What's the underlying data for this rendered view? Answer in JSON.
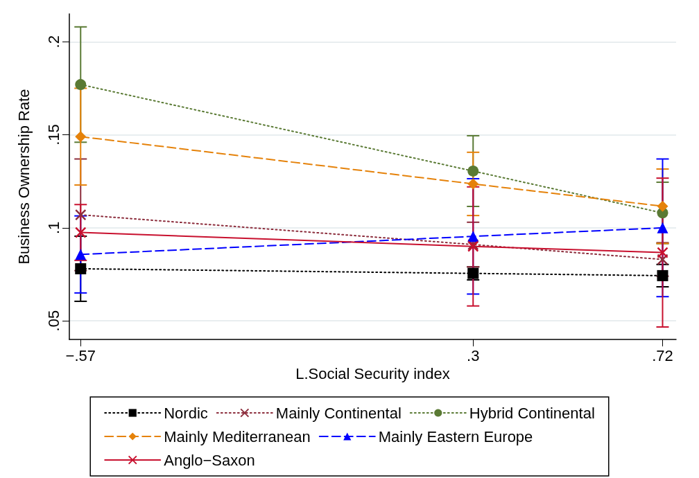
{
  "chart_data": {
    "type": "line",
    "xlabel": "L.Social Security index",
    "ylabel": "Business Ownership Rate",
    "x": [
      -0.57,
      0.3,
      0.72
    ],
    "xlim": [
      -0.595,
      0.75
    ],
    "xticks": [
      {
        "value": -0.57,
        "label": "−.57"
      },
      {
        "value": 0.3,
        "label": ".3"
      },
      {
        "value": 0.72,
        "label": ".72"
      }
    ],
    "ylim": [
      0.04,
      0.215
    ],
    "yticks": [
      {
        "value": 0.05,
        "label": ".05"
      },
      {
        "value": 0.1,
        "label": ".1"
      },
      {
        "value": 0.15,
        "label": ".15"
      },
      {
        "value": 0.2,
        "label": ".2"
      }
    ],
    "grid": "y",
    "legend": "bottom",
    "series": [
      {
        "name": "Nordic",
        "color": "#000000",
        "marker": "square",
        "line_style": "dotted",
        "values": [
          0.078,
          0.0755,
          0.0743
        ],
        "errors": [
          0.0175,
          0.0035,
          0.006
        ]
      },
      {
        "name": "Mainly Continental",
        "color": "#8c2d3c",
        "marker": "cross",
        "line_style": "dotted",
        "values": [
          0.107,
          0.091,
          0.083
        ],
        "errors": [
          0.03,
          0.012,
          0.009
        ]
      },
      {
        "name": "Hybrid Continental",
        "color": "#5a7a34",
        "marker": "circle",
        "line_style": "dotted",
        "values": [
          0.177,
          0.1305,
          0.108
        ],
        "errors": [
          0.031,
          0.019,
          0.0165
        ]
      },
      {
        "name": "Mainly Mediterranean",
        "color": "#e5820a",
        "marker": "diamond",
        "line_style": "dashed",
        "values": [
          0.149,
          0.1236,
          0.1116
        ],
        "errors": [
          0.026,
          0.017,
          0.02
        ]
      },
      {
        "name": "Mainly Eastern Europe",
        "color": "#0000ff",
        "marker": "triangle",
        "line_style": "dashed",
        "values": [
          0.0857,
          0.0954,
          0.1
        ],
        "errors": [
          0.0207,
          0.031,
          0.037
        ]
      },
      {
        "name": "Anglo−Saxon",
        "color": "#c8102e",
        "marker": "cross",
        "line_style": "solid",
        "values": [
          0.0975,
          0.09,
          0.0867
        ],
        "errors": [
          0.015,
          0.032,
          0.04
        ]
      }
    ]
  }
}
